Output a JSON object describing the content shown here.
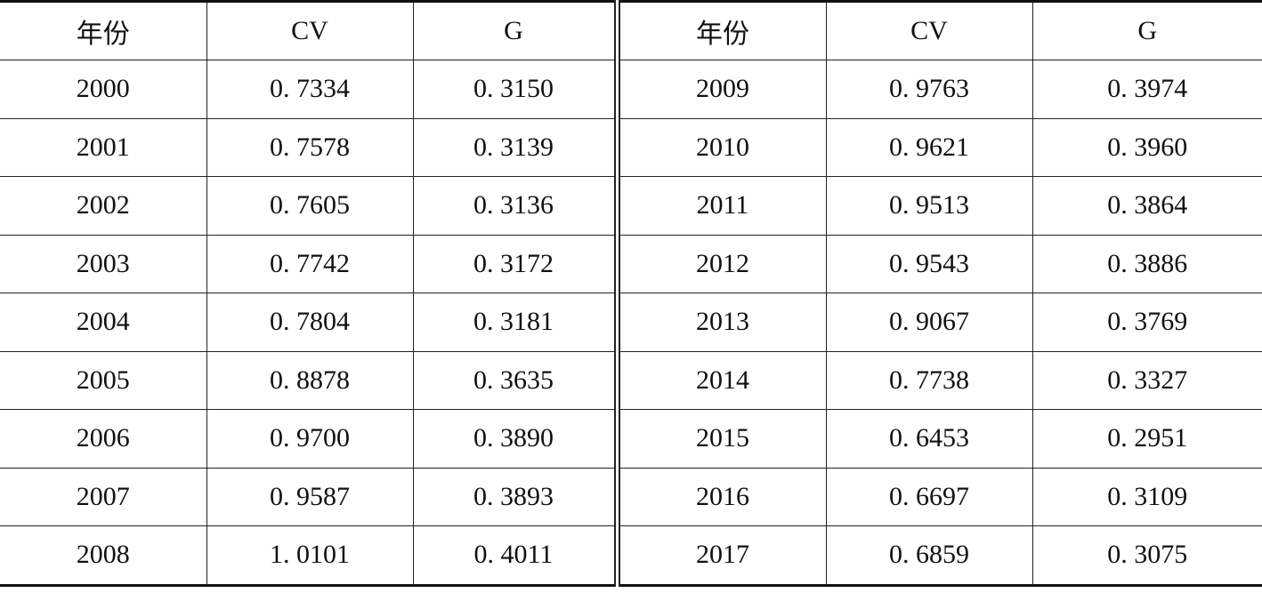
{
  "table": {
    "header": [
      "年份",
      "CV",
      "G",
      "年份",
      "CV",
      "G"
    ],
    "rows": [
      [
        "2000",
        "0. 7334",
        "0. 3150",
        "2009",
        "0. 9763",
        "0. 3974"
      ],
      [
        "2001",
        "0. 7578",
        "0. 3139",
        "2010",
        "0. 9621",
        "0. 3960"
      ],
      [
        "2002",
        "0. 7605",
        "0. 3136",
        "2011",
        "0. 9513",
        "0. 3864"
      ],
      [
        "2003",
        "0. 7742",
        "0. 3172",
        "2012",
        "0. 9543",
        "0. 3886"
      ],
      [
        "2004",
        "0. 7804",
        "0. 3181",
        "2013",
        "0. 9067",
        "0. 3769"
      ],
      [
        "2005",
        "0. 8878",
        "0. 3635",
        "2014",
        "0. 7738",
        "0. 3327"
      ],
      [
        "2006",
        "0. 9700",
        "0. 3890",
        "2015",
        "0. 6453",
        "0. 2951"
      ],
      [
        "2007",
        "0. 9587",
        "0. 3893",
        "2016",
        "0. 6697",
        "0. 3109"
      ],
      [
        "2008",
        "1. 0101",
        "0. 4011",
        "2017",
        "0. 6859",
        "0. 3075"
      ]
    ]
  }
}
